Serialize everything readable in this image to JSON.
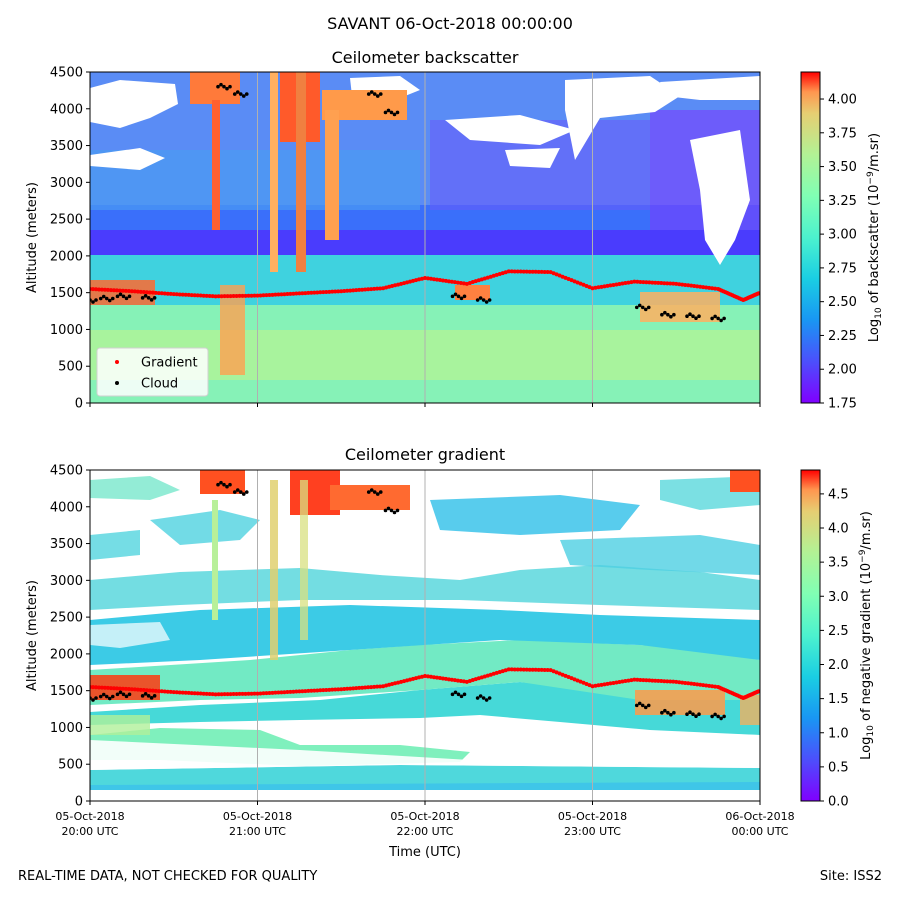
{
  "figure": {
    "title": "SAVANT 06-Oct-2018 00:00:00",
    "footer_left": "REAL-TIME DATA, NOT CHECKED FOR QUALITY",
    "footer_right": "Site: ISS2"
  },
  "chart_data": [
    {
      "type": "heatmap",
      "title": "Ceilometer backscatter",
      "xlabel": "",
      "ylabel": "Altitude (meters)",
      "ylim": [
        0,
        4500
      ],
      "yticks": [
        0,
        500,
        1000,
        1500,
        2000,
        2500,
        3000,
        3500,
        4000,
        4500
      ],
      "colorbar": {
        "label_prefix": "Log",
        "label_sub": "10",
        "label_mid": " of backscatter (10",
        "label_sup": "−9",
        "label_suffix": "/m.sr)",
        "range": [
          1.75,
          4.2
        ],
        "ticks": [
          "1.75",
          "2.00",
          "2.25",
          "2.50",
          "2.75",
          "3.00",
          "3.25",
          "3.50",
          "3.75",
          "4.00"
        ],
        "colormap": "rainbow"
      },
      "legend": {
        "location": "lower-left",
        "entries": [
          {
            "label": "Gradient",
            "color": "#ff0000"
          },
          {
            "label": "Cloud",
            "color": "#000000"
          }
        ]
      },
      "gradient_layer": {
        "x": [
          0,
          0.25,
          0.5,
          0.75,
          1.0,
          1.25,
          1.5,
          1.75,
          2.0,
          2.25,
          2.5,
          2.75,
          3.0,
          3.25,
          3.5,
          3.75,
          3.9,
          4.0
        ],
        "y": [
          1550,
          1520,
          1480,
          1450,
          1460,
          1490,
          1520,
          1560,
          1700,
          1620,
          1790,
          1780,
          1560,
          1650,
          1620,
          1550,
          1400,
          1500
        ]
      },
      "cloud_base": {
        "x": [
          0,
          0.1,
          0.2,
          0.35,
          0.8,
          0.9,
          1.7,
          1.8,
          2.2,
          2.35,
          3.3,
          3.45,
          3.6,
          3.75
        ],
        "y": [
          1400,
          1420,
          1450,
          1430,
          4300,
          4200,
          4200,
          3950,
          1450,
          1400,
          1300,
          1200,
          1180,
          1150
        ]
      }
    },
    {
      "type": "heatmap",
      "title": "Ceilometer gradient",
      "xlabel": "Time (UTC)",
      "ylabel": "Altitude (meters)",
      "ylim": [
        0,
        4500
      ],
      "yticks": [
        0,
        500,
        1000,
        1500,
        2000,
        2500,
        3000,
        3500,
        4000,
        4500
      ],
      "xticks": [
        {
          "date": "05-Oct-2018",
          "time": "20:00 UTC"
        },
        {
          "date": "05-Oct-2018",
          "time": "21:00 UTC"
        },
        {
          "date": "05-Oct-2018",
          "time": "22:00 UTC"
        },
        {
          "date": "05-Oct-2018",
          "time": "23:00 UTC"
        },
        {
          "date": "06-Oct-2018",
          "time": "00:00 UTC"
        }
      ],
      "colorbar": {
        "label_prefix": "Log",
        "label_sub": "10",
        "label_mid": " of negative gradient (10",
        "label_sup": "−9",
        "label_suffix": "/m.sr)",
        "range": [
          0.0,
          4.85
        ],
        "ticks": [
          "0.0",
          "0.5",
          "1.0",
          "1.5",
          "2.0",
          "2.5",
          "3.0",
          "3.5",
          "4.0",
          "4.5"
        ],
        "colormap": "rainbow"
      }
    }
  ]
}
